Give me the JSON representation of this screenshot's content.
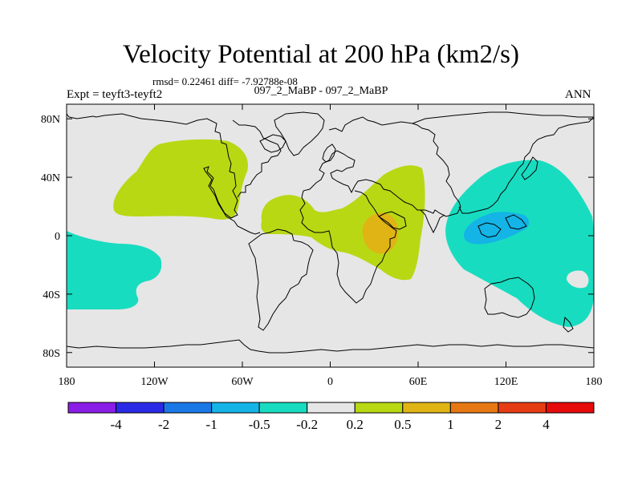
{
  "title": "Velocity Potential at 200 hPa (km2/s)",
  "stats": "rmsd= 0.22461  diff= -7.92788e-08",
  "experiment": "Expt = teyft3-teyft2",
  "comparison": "097_2_MaBP - 097_2_MaBP",
  "season": "ANN",
  "map": {
    "lon_range": [
      -180,
      180
    ],
    "lat_range": [
      -90,
      90
    ],
    "lon_ticks": [
      {
        "value": -180,
        "label": "180"
      },
      {
        "value": -120,
        "label": "120W"
      },
      {
        "value": -60,
        "label": "60W"
      },
      {
        "value": 0,
        "label": "0"
      },
      {
        "value": 60,
        "label": "60E"
      },
      {
        "value": 120,
        "label": "120E"
      },
      {
        "value": 180,
        "label": "180"
      }
    ],
    "lat_ticks": [
      {
        "value": 80,
        "label": "80N"
      },
      {
        "value": 40,
        "label": "40N"
      },
      {
        "value": 0,
        "label": "0"
      },
      {
        "value": -40,
        "label": "40S"
      },
      {
        "value": -80,
        "label": "80S"
      }
    ],
    "background_color": "#e6e6e6",
    "land_outline_color": "#000000"
  },
  "colorbar": {
    "colors": [
      "#8a1ee6",
      "#2a2ae6",
      "#1a78e6",
      "#14b4e6",
      "#18dcc0",
      "#e6e6e6",
      "#b8d814",
      "#e0b414",
      "#e67814",
      "#e63c14",
      "#e60a0a"
    ],
    "tick_labels": [
      "-4",
      "-2",
      "-1",
      "-0.5",
      "-0.2",
      "0.2",
      "0.5",
      "1",
      "2",
      "4"
    ]
  }
}
